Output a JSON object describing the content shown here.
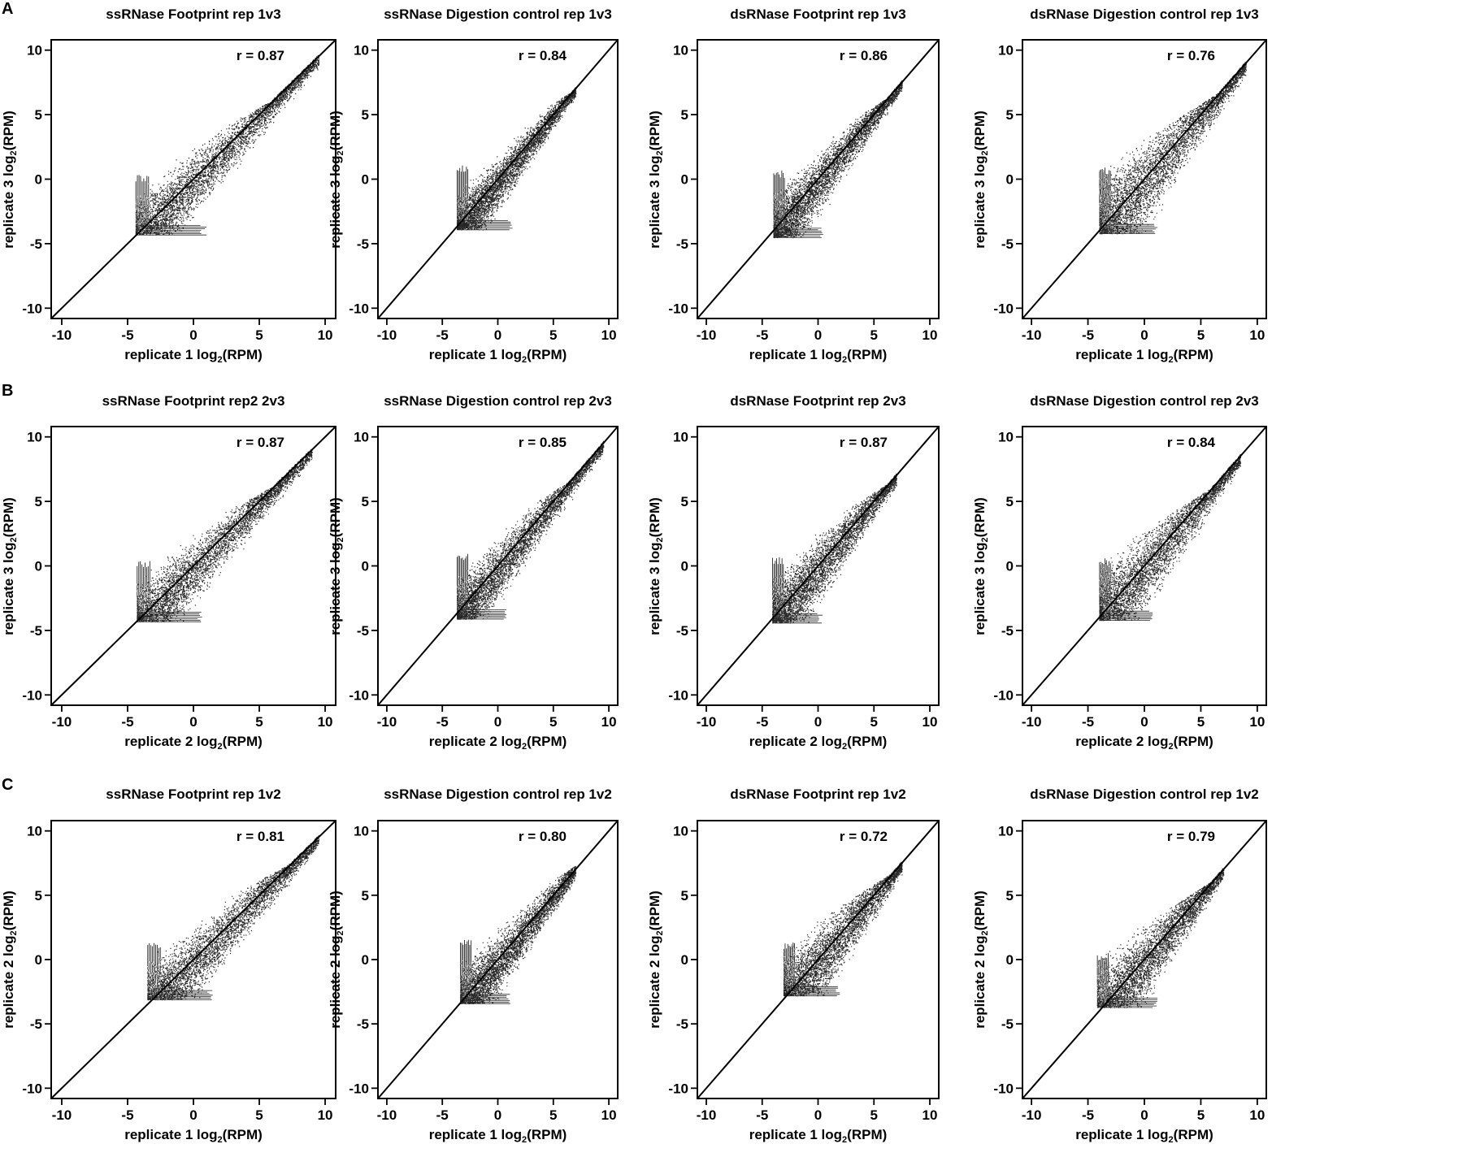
{
  "figure": {
    "row_labels": [
      "A",
      "B",
      "C"
    ]
  },
  "chart_data": [
    {
      "type": "scatter",
      "row": "A",
      "title": "ssRNase Footprint rep 1v3",
      "xlabel_prefix": "replicate 1 log",
      "ylabel_prefix": "replicate 3 log",
      "label_sub": "2",
      "label_suffix": "(RPM)",
      "annotation": "r = 0.87",
      "xlim": [
        -10.8,
        10.8
      ],
      "ylim": [
        -10.8,
        10.8
      ],
      "xticks": [
        -10,
        -5,
        0,
        5,
        10
      ],
      "yticks": [
        -10,
        -5,
        0,
        5,
        10
      ],
      "tick_labels": [
        "-10",
        "-5",
        "0",
        "5",
        "10"
      ],
      "identity_line": true,
      "cloud": {
        "x_min": -4.4,
        "x_max": 9.5,
        "y_floor": -4.3,
        "y_top_at_xmin": 0.4,
        "spread": 1.6,
        "tail_x": 1.0
      }
    },
    {
      "type": "scatter",
      "row": "A",
      "title": "ssRNase Digestion control rep 1v3",
      "xlabel_prefix": "replicate 1 log",
      "ylabel_prefix": "replicate 3 log",
      "label_sub": "2",
      "label_suffix": "(RPM)",
      "annotation": "r = 0.84",
      "xlim": [
        -10.8,
        10.8
      ],
      "ylim": [
        -10.8,
        10.8
      ],
      "xticks": [
        -10,
        -5,
        0,
        5,
        10
      ],
      "yticks": [
        -10,
        -5,
        0,
        5,
        10
      ],
      "tick_labels": [
        "-10",
        "-5",
        "0",
        "5",
        "10"
      ],
      "identity_line": true,
      "cloud": {
        "x_min": -3.7,
        "x_max": 7.0,
        "y_floor": -3.9,
        "y_top_at_xmin": 1.1,
        "spread": 1.3,
        "tail_x": 1.4
      }
    },
    {
      "type": "scatter",
      "row": "A",
      "title": "dsRNase Footprint rep 1v3",
      "xlabel_prefix": "replicate 1 log",
      "ylabel_prefix": "replicate 3 log",
      "label_sub": "2",
      "label_suffix": "(RPM)",
      "annotation": "r = 0.86",
      "xlim": [
        -10.8,
        10.8
      ],
      "ylim": [
        -10.8,
        10.8
      ],
      "xticks": [
        -10,
        -5,
        0,
        5,
        10
      ],
      "yticks": [
        -10,
        -5,
        0,
        5,
        10
      ],
      "tick_labels": [
        "-10",
        "-5",
        "0",
        "5",
        "10"
      ],
      "identity_line": true,
      "cloud": {
        "x_min": -4.0,
        "x_max": 7.5,
        "y_floor": -4.5,
        "y_top_at_xmin": 0.7,
        "spread": 1.5,
        "tail_x": 0.5
      }
    },
    {
      "type": "scatter",
      "row": "A",
      "title": "dsRNase Digestion control rep 1v3",
      "xlabel_prefix": "replicate 1 log",
      "ylabel_prefix": "replicate 3 log",
      "label_sub": "2",
      "label_suffix": "(RPM)",
      "annotation": "r = 0.76",
      "xlim": [
        -10.8,
        10.8
      ],
      "ylim": [
        -10.8,
        10.8
      ],
      "xticks": [
        -10,
        -5,
        0,
        5,
        10
      ],
      "yticks": [
        -10,
        -5,
        0,
        5,
        10
      ],
      "tick_labels": [
        "-10",
        "-5",
        "0",
        "5",
        "10"
      ],
      "identity_line": true,
      "cloud": {
        "x_min": -4.0,
        "x_max": 9.0,
        "y_floor": -4.2,
        "y_top_at_xmin": 0.9,
        "spread": 2.2,
        "tail_x": 1.2
      }
    },
    {
      "type": "scatter",
      "row": "B",
      "title": "ssRNase Footprint rep2 2v3",
      "xlabel_prefix": "replicate 2 log",
      "ylabel_prefix": "replicate 3 log",
      "label_sub": "2",
      "label_suffix": "(RPM)",
      "annotation": "r = 0.87",
      "xlim": [
        -10.8,
        10.8
      ],
      "ylim": [
        -10.8,
        10.8
      ],
      "xticks": [
        -10,
        -5,
        0,
        5,
        10
      ],
      "yticks": [
        -10,
        -5,
        0,
        5,
        10
      ],
      "tick_labels": [
        "-10",
        "-5",
        "0",
        "5",
        "10"
      ],
      "identity_line": true,
      "cloud": {
        "x_min": -4.3,
        "x_max": 9.0,
        "y_floor": -4.3,
        "y_top_at_xmin": 0.5,
        "spread": 1.6,
        "tail_x": 0.8
      }
    },
    {
      "type": "scatter",
      "row": "B",
      "title": "ssRNase Digestion control rep 2v3",
      "xlabel_prefix": "replicate 2 log",
      "ylabel_prefix": "replicate 3 log",
      "label_sub": "2",
      "label_suffix": "(RPM)",
      "annotation": "r = 0.85",
      "xlim": [
        -10.8,
        10.8
      ],
      "ylim": [
        -10.8,
        10.8
      ],
      "xticks": [
        -10,
        -5,
        0,
        5,
        10
      ],
      "yticks": [
        -10,
        -5,
        0,
        5,
        10
      ],
      "tick_labels": [
        "-10",
        "-5",
        "0",
        "5",
        "10"
      ],
      "identity_line": true,
      "cloud": {
        "x_min": -3.7,
        "x_max": 9.5,
        "y_floor": -4.1,
        "y_top_at_xmin": 1.0,
        "spread": 1.4,
        "tail_x": 1.0
      }
    },
    {
      "type": "scatter",
      "row": "B",
      "title": "dsRNase Footprint rep 2v3",
      "xlabel_prefix": "replicate 2 log",
      "ylabel_prefix": "replicate 3 log",
      "label_sub": "2",
      "label_suffix": "(RPM)",
      "annotation": "r = 0.87",
      "xlim": [
        -10.8,
        10.8
      ],
      "ylim": [
        -10.8,
        10.8
      ],
      "xticks": [
        -10,
        -5,
        0,
        5,
        10
      ],
      "yticks": [
        -10,
        -5,
        0,
        5,
        10
      ],
      "tick_labels": [
        "-10",
        "-5",
        "0",
        "5",
        "10"
      ],
      "identity_line": true,
      "cloud": {
        "x_min": -4.1,
        "x_max": 7.0,
        "y_floor": -4.4,
        "y_top_at_xmin": 0.7,
        "spread": 1.7,
        "tail_x": 0.4
      }
    },
    {
      "type": "scatter",
      "row": "B",
      "title": "dsRNase Digestion control rep 2v3",
      "xlabel_prefix": "replicate 2 log",
      "ylabel_prefix": "replicate 3 log",
      "label_sub": "2",
      "label_suffix": "(RPM)",
      "annotation": "r = 0.84",
      "xlim": [
        -10.8,
        10.8
      ],
      "ylim": [
        -10.8,
        10.8
      ],
      "xticks": [
        -10,
        -5,
        0,
        5,
        10
      ],
      "yticks": [
        -10,
        -5,
        0,
        5,
        10
      ],
      "tick_labels": [
        "-10",
        "-5",
        "0",
        "5",
        "10"
      ],
      "identity_line": true,
      "cloud": {
        "x_min": -4.0,
        "x_max": 8.5,
        "y_floor": -4.2,
        "y_top_at_xmin": 0.6,
        "spread": 2.0,
        "tail_x": 0.8
      }
    },
    {
      "type": "scatter",
      "row": "C",
      "title": "ssRNase Footprint rep 1v2",
      "xlabel_prefix": "replicate 1 log",
      "ylabel_prefix": "replicate 2 log",
      "label_sub": "2",
      "label_suffix": "(RPM)",
      "annotation": "r = 0.81",
      "xlim": [
        -10.8,
        10.8
      ],
      "ylim": [
        -10.8,
        10.8
      ],
      "xticks": [
        -10,
        -5,
        0,
        5,
        10
      ],
      "yticks": [
        -10,
        -5,
        0,
        5,
        10
      ],
      "tick_labels": [
        "-10",
        "-5",
        "0",
        "5",
        "10"
      ],
      "identity_line": true,
      "cloud": {
        "x_min": -3.5,
        "x_max": 9.5,
        "y_floor": -3.1,
        "y_top_at_xmin": 1.5,
        "spread": 1.7,
        "tail_x": 1.5
      }
    },
    {
      "type": "scatter",
      "row": "C",
      "title": "ssRNase Digestion control rep 1v2",
      "xlabel_prefix": "replicate 1 log",
      "ylabel_prefix": "replicate 2 log",
      "label_sub": "2",
      "label_suffix": "(RPM)",
      "annotation": "r = 0.80",
      "xlim": [
        -10.8,
        10.8
      ],
      "ylim": [
        -10.8,
        10.8
      ],
      "xticks": [
        -10,
        -5,
        0,
        5,
        10
      ],
      "yticks": [
        -10,
        -5,
        0,
        5,
        10
      ],
      "tick_labels": [
        "-10",
        "-5",
        "0",
        "5",
        "10"
      ],
      "identity_line": true,
      "cloud": {
        "x_min": -3.4,
        "x_max": 7.0,
        "y_floor": -3.4,
        "y_top_at_xmin": 1.6,
        "spread": 1.6,
        "tail_x": 1.2
      }
    },
    {
      "type": "scatter",
      "row": "C",
      "title": "dsRNase Footprint rep 1v2",
      "xlabel_prefix": "replicate 1 log",
      "ylabel_prefix": "replicate 2 log",
      "label_sub": "2",
      "label_suffix": "(RPM)",
      "annotation": "r = 0.72",
      "xlim": [
        -10.8,
        10.8
      ],
      "ylim": [
        -10.8,
        10.8
      ],
      "xticks": [
        -10,
        -5,
        0,
        5,
        10
      ],
      "yticks": [
        -10,
        -5,
        0,
        5,
        10
      ],
      "tick_labels": [
        "-10",
        "-5",
        "0",
        "5",
        "10"
      ],
      "identity_line": true,
      "cloud": {
        "x_min": -3.1,
        "x_max": 7.5,
        "y_floor": -2.8,
        "y_top_at_xmin": 1.4,
        "spread": 2.0,
        "tail_x": 2.0
      }
    },
    {
      "type": "scatter",
      "row": "C",
      "title": "dsRNase Digestion control rep 1v2",
      "xlabel_prefix": "replicate 1 log",
      "ylabel_prefix": "replicate 2 log",
      "label_sub": "2",
      "label_suffix": "(RPM)",
      "annotation": "r = 0.79",
      "xlim": [
        -10.8,
        10.8
      ],
      "ylim": [
        -10.8,
        10.8
      ],
      "xticks": [
        -10,
        -5,
        0,
        5,
        10
      ],
      "yticks": [
        -10,
        -5,
        0,
        5,
        10
      ],
      "tick_labels": [
        "-10",
        "-5",
        "0",
        "5",
        "10"
      ],
      "identity_line": true,
      "cloud": {
        "x_min": -4.2,
        "x_max": 7.0,
        "y_floor": -3.7,
        "y_top_at_xmin": 0.5,
        "spread": 2.0,
        "tail_x": 1.2
      }
    }
  ]
}
